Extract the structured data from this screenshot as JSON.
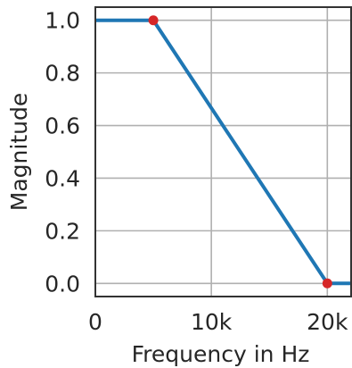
{
  "chart_data": {
    "type": "line",
    "title": "",
    "xlabel": "Frequency in Hz",
    "ylabel": "Magnitude",
    "xlim": [
      0,
      22050
    ],
    "ylim": [
      -0.05,
      1.05
    ],
    "x_ticks": [
      {
        "value": 0,
        "label": "0"
      },
      {
        "value": 10000,
        "label": "10k"
      },
      {
        "value": 20000,
        "label": "20k"
      }
    ],
    "y_ticks": [
      {
        "value": 0.0,
        "label": "0.0"
      },
      {
        "value": 0.2,
        "label": "0.2"
      },
      {
        "value": 0.4,
        "label": "0.4"
      },
      {
        "value": 0.6,
        "label": "0.6"
      },
      {
        "value": 0.8,
        "label": "0.8"
      },
      {
        "value": 1.0,
        "label": "1.0"
      }
    ],
    "grid": true,
    "series": [
      {
        "color": "#1f77b4",
        "x": [
          0,
          5000,
          20000,
          22050
        ],
        "y": [
          1.0,
          1.0,
          0.0,
          0.0
        ]
      }
    ],
    "markers": {
      "color": "#d62728",
      "x": [
        5000,
        20000
      ],
      "y": [
        1.0,
        0.0
      ]
    }
  }
}
